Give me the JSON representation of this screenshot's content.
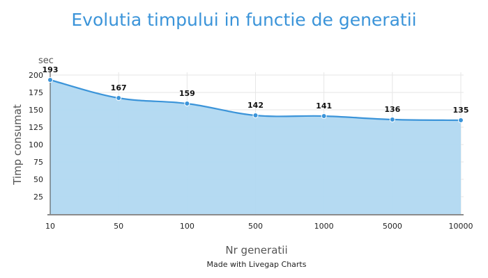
{
  "colors": {
    "title": "#3b94d9",
    "line": "#3b94d9",
    "fill": "#b1d8f1",
    "grid": "#e6e6e6",
    "point": "#3b94d9"
  },
  "credit": "Made with Livegap Charts",
  "chart_data": {
    "type": "area",
    "title": "Evolutia timpului in functie de generatii",
    "xlabel": "Nr generatii",
    "ylabel": "Timp consumat",
    "y_unit": "sec",
    "categories": [
      "10",
      "50",
      "100",
      "500",
      "1000",
      "5000",
      "10000"
    ],
    "series": [
      {
        "values": [
          193,
          167,
          159,
          142,
          141,
          136,
          135
        ]
      }
    ],
    "yticks": [
      25,
      50,
      75,
      100,
      125,
      150,
      175,
      200
    ],
    "ylim": [
      0,
      200
    ],
    "grid": true,
    "smooth": true,
    "data_labels": true
  }
}
